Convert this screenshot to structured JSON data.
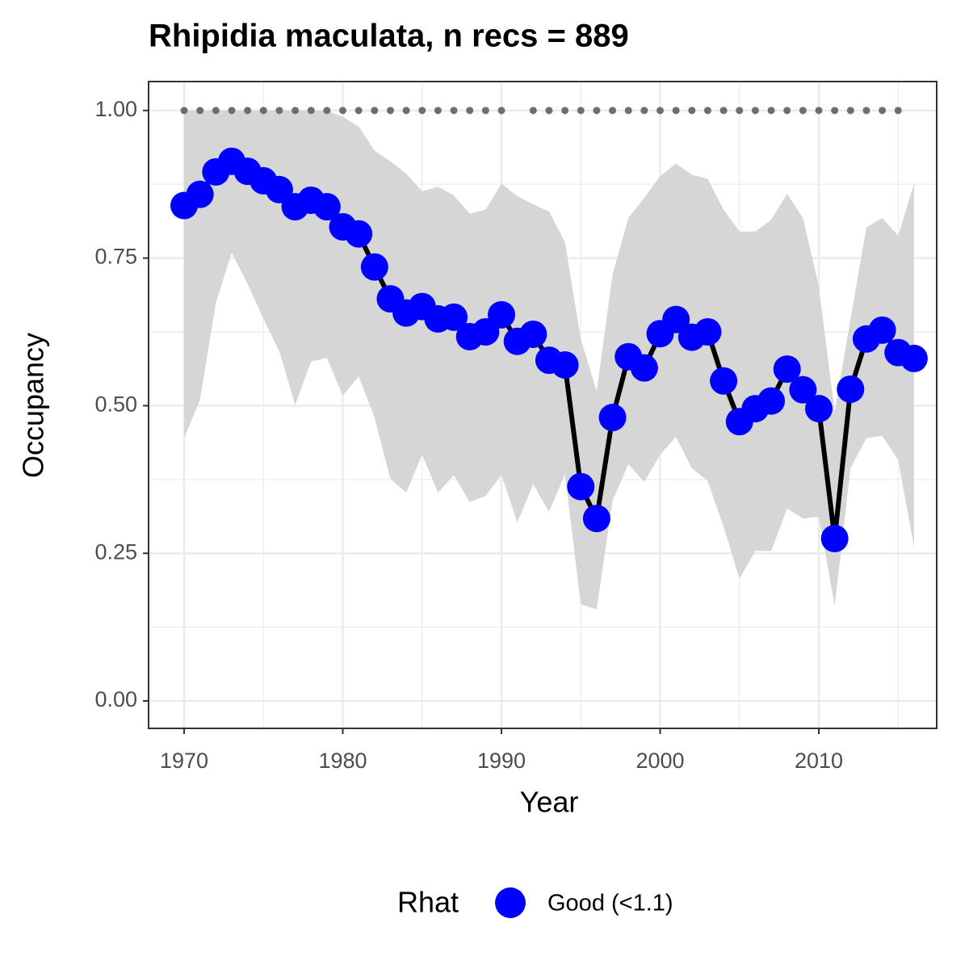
{
  "chart_data": {
    "type": "line",
    "title": "Rhipidia maculata, n recs = 889",
    "x_label": "Year",
    "y_label": "Occupancy",
    "x": [
      1970,
      1971,
      1972,
      1973,
      1974,
      1975,
      1976,
      1977,
      1978,
      1979,
      1980,
      1981,
      1982,
      1983,
      1984,
      1985,
      1986,
      1987,
      1988,
      1989,
      1990,
      1991,
      1992,
      1993,
      1994,
      1995,
      1996,
      1997,
      1998,
      1999,
      2000,
      2001,
      2002,
      2003,
      2004,
      2005,
      2006,
      2007,
      2008,
      2009,
      2010,
      2011,
      2012,
      2013,
      2014,
      2015,
      2016
    ],
    "series": [
      {
        "name": "Good (<1.1)",
        "color": "#0000ff",
        "line_color": "#000000",
        "band_color": "#d6d6d6",
        "values": [
          0.839,
          0.858,
          0.896,
          0.914,
          0.897,
          0.881,
          0.866,
          0.837,
          0.848,
          0.837,
          0.803,
          0.791,
          0.735,
          0.681,
          0.657,
          0.668,
          0.647,
          0.65,
          0.617,
          0.625,
          0.654,
          0.609,
          0.621,
          0.577,
          0.569,
          0.363,
          0.309,
          0.48,
          0.583,
          0.564,
          0.622,
          0.646,
          0.616,
          0.625,
          0.542,
          0.473,
          0.495,
          0.508,
          0.562,
          0.527,
          0.495,
          0.275,
          0.528,
          0.613,
          0.628,
          0.59,
          0.58
        ],
        "lower": [
          0.445,
          0.51,
          0.674,
          0.759,
          0.706,
          0.647,
          0.592,
          0.501,
          0.575,
          0.581,
          0.517,
          0.55,
          0.48,
          0.376,
          0.353,
          0.417,
          0.353,
          0.382,
          0.337,
          0.347,
          0.383,
          0.302,
          0.367,
          0.32,
          0.384,
          0.164,
          0.155,
          0.339,
          0.401,
          0.371,
          0.417,
          0.447,
          0.394,
          0.372,
          0.295,
          0.207,
          0.254,
          0.254,
          0.326,
          0.309,
          0.312,
          0.161,
          0.394,
          0.445,
          0.449,
          0.408,
          0.261
        ],
        "upper": [
          1.0,
          1.0,
          1.0,
          1.0,
          1.0,
          1.0,
          1.0,
          1.0,
          1.0,
          1.0,
          0.989,
          0.973,
          0.932,
          0.914,
          0.893,
          0.863,
          0.871,
          0.856,
          0.825,
          0.832,
          0.876,
          0.855,
          0.841,
          0.829,
          0.777,
          0.613,
          0.524,
          0.722,
          0.818,
          0.852,
          0.889,
          0.91,
          0.891,
          0.884,
          0.832,
          0.795,
          0.795,
          0.815,
          0.859,
          0.818,
          0.702,
          0.49,
          0.647,
          0.802,
          0.818,
          0.788,
          0.876
        ]
      },
      {
        "color": "#6e6e6e",
        "values": [
          1,
          1,
          1,
          1,
          1,
          1,
          1,
          1,
          1,
          1,
          1,
          1,
          1,
          1,
          1,
          1,
          1,
          1,
          1,
          1,
          1,
          null,
          1,
          1,
          1,
          1,
          1,
          1,
          1,
          1,
          1,
          1,
          1,
          1,
          1,
          1,
          1,
          1,
          1,
          1,
          1,
          1,
          1,
          1,
          1,
          1,
          null
        ]
      }
    ],
    "xlim": [
      1967.76,
      2017.43
    ],
    "ylim": [
      -0.0465,
      1.049
    ],
    "xticks": [
      1970,
      1980,
      1990,
      2000,
      2010
    ],
    "yticks": [
      {
        "value": 0,
        "label": "0.00"
      },
      {
        "value": 0.25,
        "label": "0.25"
      },
      {
        "value": 0.5,
        "label": "0.50"
      },
      {
        "value": 0.75,
        "label": "0.75"
      },
      {
        "value": 1,
        "label": "1.00"
      }
    ],
    "minor_xticks": [
      1975,
      1985,
      1995,
      2005,
      2015
    ],
    "minor_yticks": [
      0.125,
      0.375,
      0.625,
      0.875
    ],
    "grid": true,
    "legend_title": "Rhat",
    "legend_position": "bottom"
  }
}
